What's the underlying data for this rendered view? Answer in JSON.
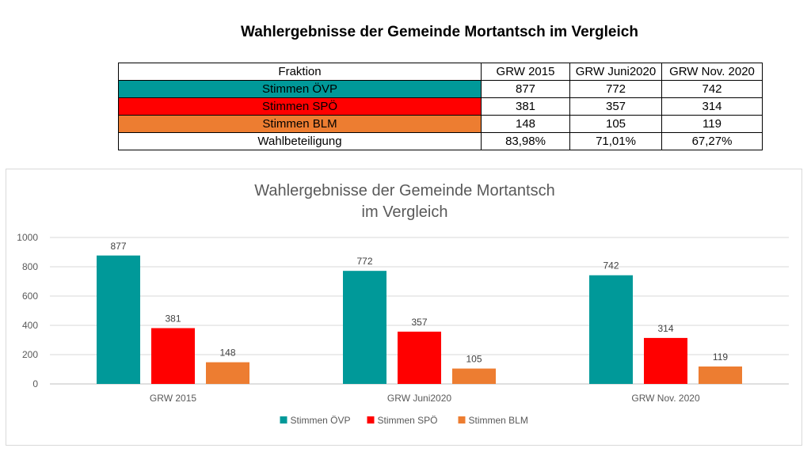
{
  "page_title": "Wahlergebnisse der Gemeinde Mortantsch im Vergleich",
  "table": {
    "headers": [
      "Fraktion",
      "GRW 2015",
      "GRW Juni2020",
      "GRW Nov. 2020"
    ],
    "rows": [
      {
        "label": "Stimmen ÖVP",
        "values": [
          "877",
          "772",
          "742"
        ],
        "color": "#009999"
      },
      {
        "label": "Stimmen SPÖ",
        "values": [
          "381",
          "357",
          "314"
        ],
        "color": "#ff0000"
      },
      {
        "label": "Stimmen BLM",
        "values": [
          "148",
          "105",
          "119"
        ],
        "color": "#ed7d31"
      },
      {
        "label": "Wahlbeteiligung",
        "values": [
          "83,98%",
          "71,01%",
          "67,27%"
        ],
        "color": "#ffffff"
      }
    ]
  },
  "chart_data": {
    "type": "bar",
    "title_line1": "Wahlergebnisse der Gemeinde Mortantsch",
    "title_line2": "im Vergleich",
    "categories": [
      "GRW 2015",
      "GRW Juni2020",
      "GRW Nov. 2020"
    ],
    "series": [
      {
        "name": "Stimmen ÖVP",
        "values": [
          877,
          772,
          742
        ],
        "color": "#009999"
      },
      {
        "name": "Stimmen SPÖ",
        "values": [
          381,
          357,
          314
        ],
        "color": "#ff0000"
      },
      {
        "name": "Stimmen BLM",
        "values": [
          148,
          105,
          119
        ],
        "color": "#ed7d31"
      }
    ],
    "yticks": [
      0,
      200,
      400,
      600,
      800,
      1000
    ],
    "ylim": [
      0,
      1000
    ],
    "grid": true,
    "legend": "bottom"
  }
}
